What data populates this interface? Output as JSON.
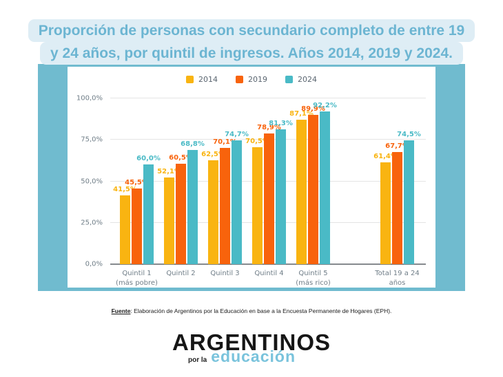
{
  "title": {
    "line1": "Proporción de personas con secundario completo de entre 19",
    "line2": "y 24 años, por quintil de ingresos. Años 2014, 2019 y 2024."
  },
  "legend": {
    "items": [
      {
        "label": "2014",
        "color": "#F9B411"
      },
      {
        "label": "2019",
        "color": "#F8630C"
      },
      {
        "label": "2024",
        "color": "#4ABAC6"
      }
    ]
  },
  "chart_data": {
    "type": "bar",
    "title": "Proporción de personas con secundario completo de entre 19 y 24 años, por quintil de ingresos. Años 2014, 2019 y 2024.",
    "categories": [
      "Quintil 1 (más pobre)",
      "Quintil 2",
      "Quintil 3",
      "Quintil 4",
      "Quintil 5 (más rico)",
      "Total 19 a 24 años"
    ],
    "category_lines": [
      [
        "Quintil 1",
        "(más pobre)"
      ],
      [
        "Quintil 2"
      ],
      [
        "Quintil 3"
      ],
      [
        "Quintil 4"
      ],
      [
        "Quintil 5",
        "(más rico)"
      ],
      [
        "Total 19 a 24",
        "años"
      ]
    ],
    "series": [
      {
        "name": "2014",
        "color": "#F9B411",
        "values": [
          41.5,
          52.1,
          62.5,
          70.5,
          87.1,
          61.4
        ],
        "labels": [
          "41,5%",
          "52,1%",
          "62,5%",
          "70,5%",
          "87,1%",
          "61,4%"
        ]
      },
      {
        "name": "2019",
        "color": "#F8630C",
        "values": [
          45.5,
          60.5,
          70.1,
          78.9,
          89.9,
          67.7
        ],
        "labels": [
          "45,5%",
          "60,5%",
          "70,1%",
          "78,9%",
          "89,9%",
          "67,7%"
        ]
      },
      {
        "name": "2024",
        "color": "#4ABAC6",
        "values": [
          60.0,
          68.8,
          74.7,
          81.3,
          92.2,
          74.5
        ],
        "labels": [
          "60,0%",
          "68,8%",
          "74,7%",
          "81,3%",
          "92,2%",
          "74,5%"
        ]
      }
    ],
    "xlabel": "",
    "ylabel": "",
    "ylim": [
      0,
      100
    ],
    "yticks": [
      {
        "value": 0,
        "label": "0,0%"
      },
      {
        "value": 25,
        "label": "25,0%"
      },
      {
        "value": 50,
        "label": "50,0%"
      },
      {
        "value": 75,
        "label": "75,0%"
      },
      {
        "value": 100,
        "label": "100,0%"
      }
    ],
    "grid": true,
    "legend_position": "top"
  },
  "source": {
    "label": "Fuente",
    "text": ": Elaboración de Argentinos por la Educación en base a la Encuesta Permanente de Hogares (EPH)."
  },
  "logo": {
    "main": "ARGENTINOS",
    "sub_left": "por la",
    "sub_right": "educación"
  },
  "colors": {
    "band": "#70BBCF",
    "title_text": "#6CB5D2",
    "title_bg": "#DEEDF5",
    "axis_text": "#6F7D87",
    "gridline": "#E4E4E4",
    "baseline": "#85898D",
    "logo_accent": "#79C3DC"
  }
}
